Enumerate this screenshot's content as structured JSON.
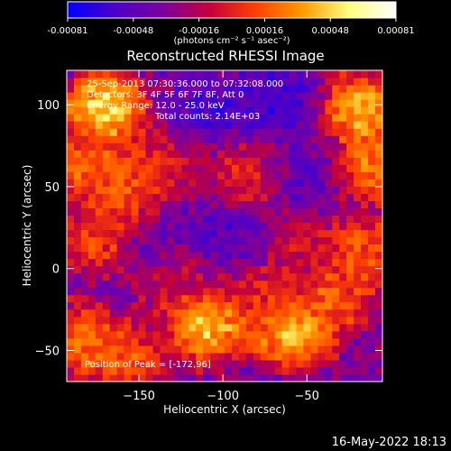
{
  "chart_data": {
    "type": "heatmap",
    "title": "Reconstructed RHESSI Image",
    "xlabel": "Heliocentric X (arcsec)",
    "ylabel": "Heliocentric Y (arcsec)",
    "xlim": [
      -193,
      -5
    ],
    "ylim": [
      -69,
      121
    ],
    "x_ticks": [
      -150,
      -100,
      -50
    ],
    "y_ticks": [
      100,
      50,
      0,
      -50
    ],
    "colorbar": {
      "min": -0.00081,
      "max": 0.00081,
      "ticks": [
        "-0.00081",
        "-0.00048",
        "-0.00016",
        "0.00016",
        "0.00048",
        "0.00081"
      ],
      "label": "(photons cm⁻² s⁻¹ asec⁻²)",
      "colors": [
        "#0000ff",
        "#4b00c8",
        "#7a00a0",
        "#c2003c",
        "#ff4000",
        "#ff9a00",
        "#ffff80",
        "#ffffff"
      ]
    },
    "annotations": [
      "25-Sep-2013 07:30:36.000 to 07:32:08.000",
      "Detectors: 3F 4F 5F 6F 7F 8F, Att 0",
      "Energy Range: 12.0 - 25.0 keV",
      "Total counts: 2.14E+03"
    ],
    "peak_label": "Position of Peak = [-172,96]",
    "peak": [
      -172,
      96
    ],
    "bright_regions": [
      {
        "x": -172,
        "y": 96,
        "level": 1.0
      },
      {
        "x": -185,
        "y": 60,
        "level": 0.75
      },
      {
        "x": -158,
        "y": 40,
        "level": 0.7
      },
      {
        "x": -145,
        "y": 62,
        "level": 0.6
      },
      {
        "x": -178,
        "y": 15,
        "level": 0.65
      },
      {
        "x": -185,
        "y": -45,
        "level": 0.75
      },
      {
        "x": -160,
        "y": -58,
        "level": 0.7
      },
      {
        "x": -112,
        "y": -38,
        "level": 0.95
      },
      {
        "x": -60,
        "y": -42,
        "level": 0.95
      },
      {
        "x": -35,
        "y": -20,
        "level": 0.7
      },
      {
        "x": -20,
        "y": 95,
        "level": 0.9
      },
      {
        "x": -15,
        "y": 60,
        "level": 0.8
      },
      {
        "x": -18,
        "y": 10,
        "level": 0.7
      },
      {
        "x": -90,
        "y": 55,
        "level": 0.55
      },
      {
        "x": -50,
        "y": 10,
        "level": 0.5
      },
      {
        "x": -75,
        "y": -20,
        "level": 0.6
      },
      {
        "x": -130,
        "y": -10,
        "level": 0.5
      }
    ],
    "dim_regions": [
      {
        "x": -110,
        "y": 95,
        "level": 0.1
      },
      {
        "x": -70,
        "y": 100,
        "level": 0.05
      },
      {
        "x": -100,
        "y": 20,
        "level": 0.15
      },
      {
        "x": -50,
        "y": 55,
        "level": 0.15
      },
      {
        "x": -140,
        "y": 20,
        "level": 0.2
      }
    ]
  },
  "footer": {
    "timestamp": "16-May-2022 18:13"
  }
}
